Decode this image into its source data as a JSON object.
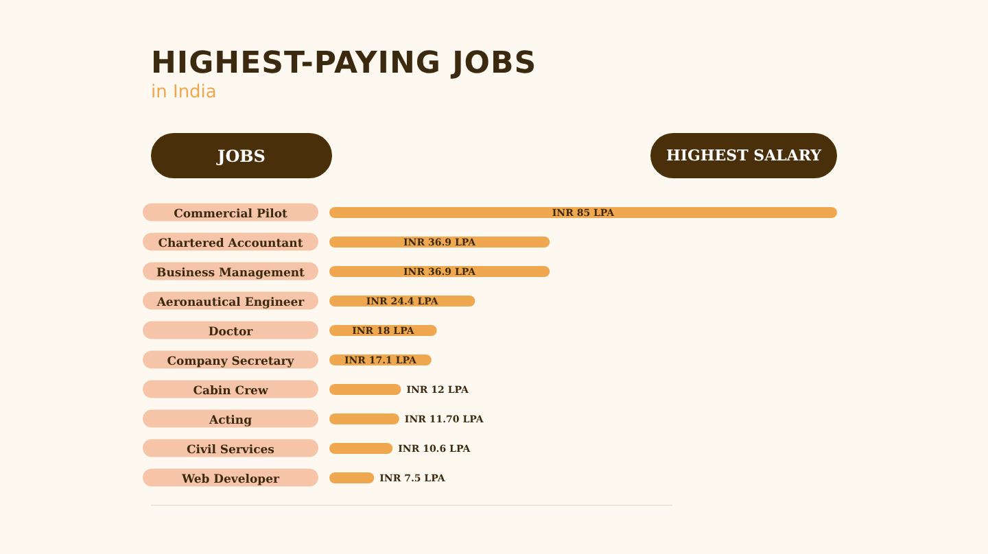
{
  "chart_data": {
    "type": "bar",
    "orientation": "horizontal",
    "title": "HIGHEST-PAYING JOBS",
    "subtitle": "in India",
    "annotations": [
      "JOBS",
      "HIGHEST SALARY"
    ],
    "categories": [
      "Commercial Pilot",
      "Chartered Accountant",
      "Business Management",
      "Aeronautical Engineer",
      "Doctor",
      "Company Secretary",
      "Cabin Crew",
      "Acting",
      "Civil Services",
      "Web Developer"
    ],
    "values": [
      85,
      36.9,
      36.9,
      24.4,
      18,
      17.1,
      12,
      11.7,
      10.6,
      7.5
    ],
    "value_labels": [
      "INR 85 LPA",
      "INR 36.9 LPA",
      "INR 36.9 LPA",
      "INR 24.4 LPA",
      "INR 18 LPA",
      "INR 17.1 LPA",
      "INR 12 LPA",
      "INR 11.70 LPA",
      "INR 10.6 LPA",
      "INR 7.5 LPA"
    ],
    "color": "#f0a850"
  }
}
